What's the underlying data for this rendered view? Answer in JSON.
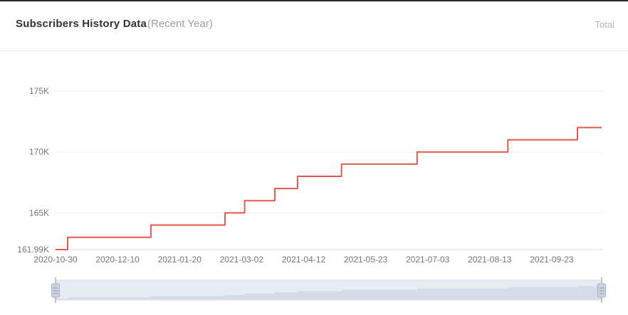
{
  "header": {
    "title": "Subscribers History Data",
    "subtitle": "(Recent Year)",
    "legend_total": "Total"
  },
  "chart_data": {
    "type": "line",
    "step": "after",
    "title": "Subscribers History Data (Recent Year)",
    "series_name": "Total",
    "unit": "K",
    "line_color": "#e15a4f",
    "grid": true,
    "legend_position": "top-right",
    "x_start": "2020-10-30",
    "x_end": "2021-10-26",
    "x_ticks": [
      "2020-10-30",
      "2020-12-10",
      "2021-01-20",
      "2021-03-02",
      "2021-04-12",
      "2021-05-23",
      "2021-07-03",
      "2021-08-13",
      "2021-09-23"
    ],
    "y_ticks": [
      {
        "label": "161.99K",
        "value": 161.99
      },
      {
        "label": "165K",
        "value": 165
      },
      {
        "label": "170K",
        "value": 170
      },
      {
        "label": "175K",
        "value": 175
      }
    ],
    "ylim": [
      161.99,
      175
    ],
    "series_points": [
      {
        "date": "2020-10-30",
        "value": 161.99
      },
      {
        "date": "2020-11-07",
        "value": 163
      },
      {
        "date": "2021-01-01",
        "value": 164
      },
      {
        "date": "2021-02-19",
        "value": 165
      },
      {
        "date": "2021-03-04",
        "value": 166
      },
      {
        "date": "2021-03-24",
        "value": 167
      },
      {
        "date": "2021-04-08",
        "value": 168
      },
      {
        "date": "2021-05-07",
        "value": 169
      },
      {
        "date": "2021-06-26",
        "value": 170
      },
      {
        "date": "2021-08-25",
        "value": 171
      },
      {
        "date": "2021-10-10",
        "value": 172
      }
    ]
  },
  "colors": {
    "axis_label": "#767676",
    "gridline": "#ededed",
    "axis_line": "#dcdcdc"
  },
  "slider": {
    "track_color": "#e7ecf3",
    "border_color": "#d7dde8",
    "shadow_color": "#d5dce8",
    "handle_fill": "#ccd4e0",
    "handle_stroke": "#a4aec1",
    "grip_color": "#8f99ad",
    "stem_color": "#aab3c4"
  }
}
